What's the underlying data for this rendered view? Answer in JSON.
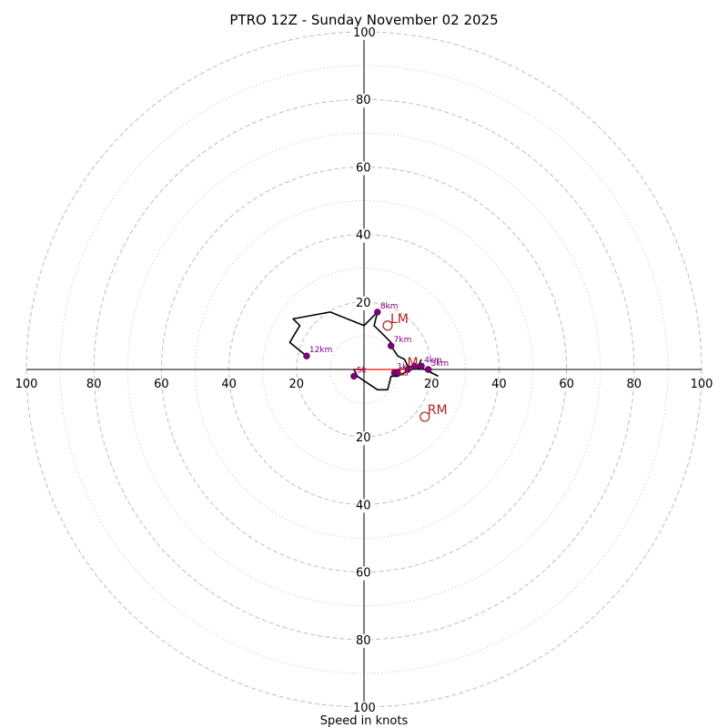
{
  "chart_data": {
    "type": "hodograph",
    "title": "PTRO 12Z - Sunday November 02 2025",
    "xlabel": "Speed in knots",
    "rings_major": [
      20,
      40,
      60,
      80,
      100
    ],
    "rings_minor": [
      10,
      30,
      50,
      70,
      90
    ],
    "max_speed": 100,
    "x_ticks": [
      "100",
      "80",
      "60",
      "40",
      "20",
      "20",
      "40",
      "60",
      "80",
      "100"
    ],
    "y_ticks": [
      "100",
      "80",
      "60",
      "40",
      "20",
      "20",
      "40",
      "60",
      "80",
      "100"
    ],
    "hodograph_line": {
      "color": "#000000",
      "points_uv": [
        [
          22,
          -2
        ],
        [
          18,
          0
        ],
        [
          13,
          1
        ],
        [
          12,
          3
        ],
        [
          10,
          4
        ],
        [
          8,
          7
        ],
        [
          8,
          8
        ],
        [
          5,
          11
        ],
        [
          3,
          13
        ],
        [
          4,
          17
        ],
        [
          0,
          13
        ],
        [
          -10,
          17
        ],
        [
          -21,
          15
        ],
        [
          -19,
          13
        ],
        [
          -22,
          8
        ],
        [
          -17,
          4
        ],
        [
          -17,
          4
        ]
      ]
    },
    "lower_trace": {
      "color": "#000000",
      "points_uv": [
        [
          0,
          0
        ],
        [
          -3,
          0
        ],
        [
          -2,
          -2
        ],
        [
          4,
          -6
        ],
        [
          7,
          -6
        ],
        [
          8,
          -2
        ],
        [
          10,
          -2
        ],
        [
          12,
          -1
        ],
        [
          14,
          0
        ],
        [
          16,
          1
        ],
        [
          17,
          3
        ]
      ]
    },
    "height_markers": [
      {
        "label": "12km",
        "u": -17,
        "v": 4
      },
      {
        "label": "8km",
        "u": 4,
        "v": 17
      },
      {
        "label": "7km",
        "u": 8,
        "v": 7
      },
      {
        "label": "5k",
        "u": -3,
        "v": -2
      },
      {
        "label": "1k",
        "u": 9,
        "v": -1
      },
      {
        "label": "",
        "u": 10,
        "v": -1
      },
      {
        "label": "",
        "u": 13,
        "v": 0
      },
      {
        "label": "",
        "u": 15,
        "v": 1
      },
      {
        "label": "4km",
        "u": 17,
        "v": 1
      },
      {
        "label": "3km",
        "u": 19,
        "v": 0
      }
    ],
    "storm_motion": [
      {
        "label": "LM",
        "u": 7,
        "v": 13
      },
      {
        "label": "RM",
        "u": 18,
        "v": -14
      },
      {
        "label": "M",
        "u": 12,
        "v": 0
      }
    ],
    "mean_wind_vector": {
      "color": "#ff0000",
      "from_uv": [
        12,
        0
      ],
      "to_uv": [
        -3,
        0
      ]
    }
  }
}
